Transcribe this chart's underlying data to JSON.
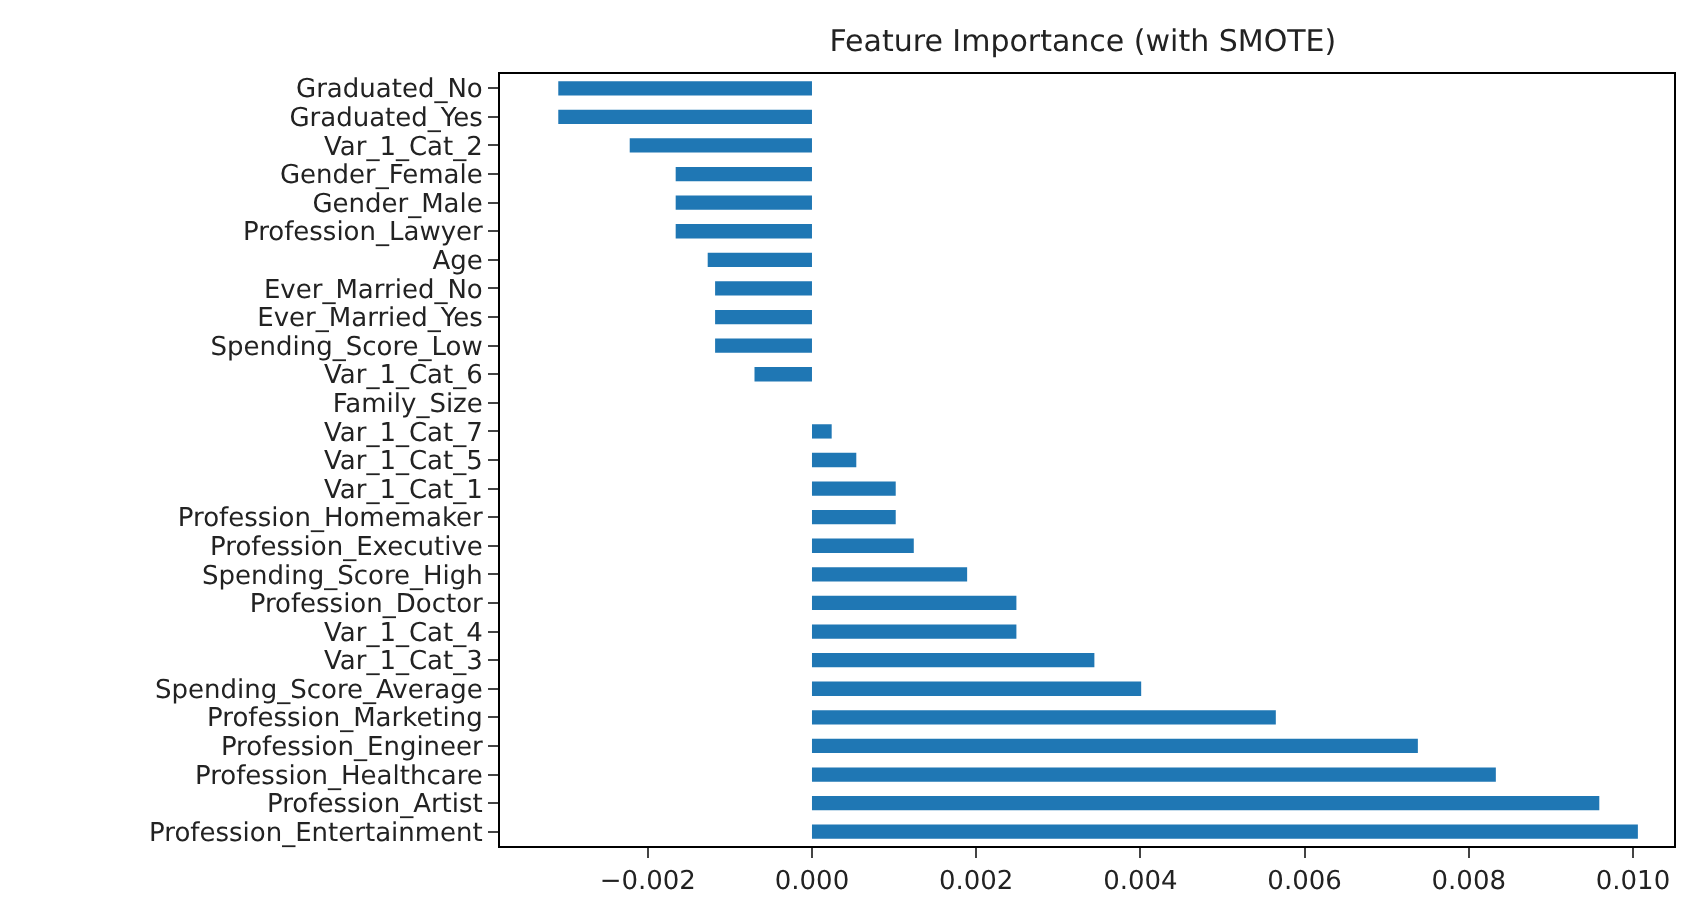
{
  "chart_data": {
    "type": "bar",
    "orientation": "horizontal",
    "title": "Feature Importance (with SMOTE)",
    "categories": [
      "Graduated_No",
      "Graduated_Yes",
      "Var_1_Cat_2",
      "Gender_Female",
      "Gender_Male",
      "Profession_Lawyer",
      "Age",
      "Ever_Married_No",
      "Ever_Married_Yes",
      "Spending_Score_Low",
      "Var_1_Cat_6",
      "Family_Size",
      "Var_1_Cat_7",
      "Var_1_Cat_5",
      "Var_1_Cat_1",
      "Profession_Homemaker",
      "Profession_Executive",
      "Spending_Score_High",
      "Profession_Doctor",
      "Var_1_Cat_4",
      "Var_1_Cat_3",
      "Spending_Score_Average",
      "Profession_Marketing",
      "Profession_Engineer",
      "Profession_Healthcare",
      "Profession_Artist",
      "Profession_Entertainment"
    ],
    "values": [
      -0.00309,
      -0.00309,
      -0.00222,
      -0.00166,
      -0.00166,
      -0.00166,
      -0.00127,
      -0.00118,
      -0.00118,
      -0.00118,
      -0.0007,
      0,
      0.00024,
      0.00054,
      0.00102,
      0.00102,
      0.00124,
      0.00189,
      0.00249,
      0.00249,
      0.00344,
      0.00401,
      0.00565,
      0.00738,
      0.00833,
      0.00959,
      0.01006
    ],
    "color": "#1f77b4",
    "xlim": [
      -0.0038,
      0.0105
    ],
    "xticks": [
      {
        "value": -0.002,
        "label": "−0.002"
      },
      {
        "value": 0,
        "label": "0.000"
      },
      {
        "value": 0.002,
        "label": "0.002"
      },
      {
        "value": 0.004,
        "label": "0.004"
      },
      {
        "value": 0.006,
        "label": "0.006"
      },
      {
        "value": 0.008,
        "label": "0.008"
      },
      {
        "value": 0.01,
        "label": "0.010"
      }
    ],
    "legend": false
  }
}
